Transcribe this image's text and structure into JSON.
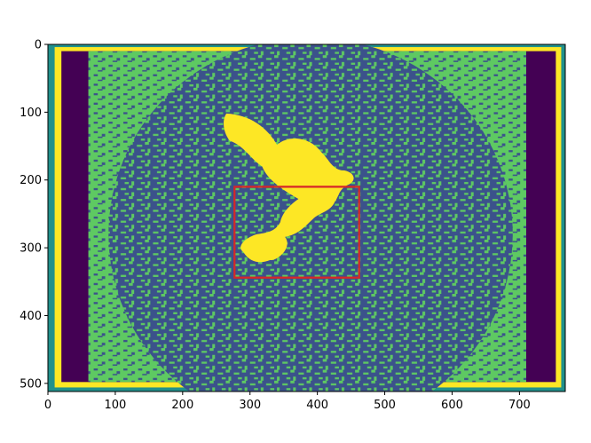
{
  "chart_data": {
    "type": "heatmap",
    "title": "",
    "xlabel": "",
    "ylabel": "",
    "image_width": 768,
    "image_height": 512,
    "xlim": [
      0,
      768
    ],
    "ylim": [
      512,
      0
    ],
    "y_inverted": true,
    "grid": false,
    "colormap": "viridis",
    "levels": [
      {
        "name": "level-0",
        "color": "#440154"
      },
      {
        "name": "level-1",
        "color": "#3b528b"
      },
      {
        "name": "level-2",
        "color": "#21918c"
      },
      {
        "name": "level-3",
        "color": "#5ec962"
      },
      {
        "name": "level-4",
        "color": "#fde725"
      }
    ],
    "x_ticks": [
      0,
      100,
      200,
      300,
      400,
      500,
      600,
      700
    ],
    "x_tick_labels": [
      "0",
      "100",
      "200",
      "300",
      "400",
      "500",
      "600",
      "700"
    ],
    "y_ticks": [
      0,
      100,
      200,
      300,
      400,
      500
    ],
    "y_tick_labels": [
      "0",
      "100",
      "200",
      "300",
      "400",
      "500"
    ],
    "rectangle": {
      "x0": 277,
      "y0": 210,
      "x1": 462,
      "y1": 344,
      "color": "#d62728"
    },
    "regions": {
      "outer_band": "yellow border near image edge",
      "side_dark": "dark purple on left and right sides",
      "background": "mixture of blue and green blocky texture",
      "bird": "yellow dove shape in center"
    }
  }
}
